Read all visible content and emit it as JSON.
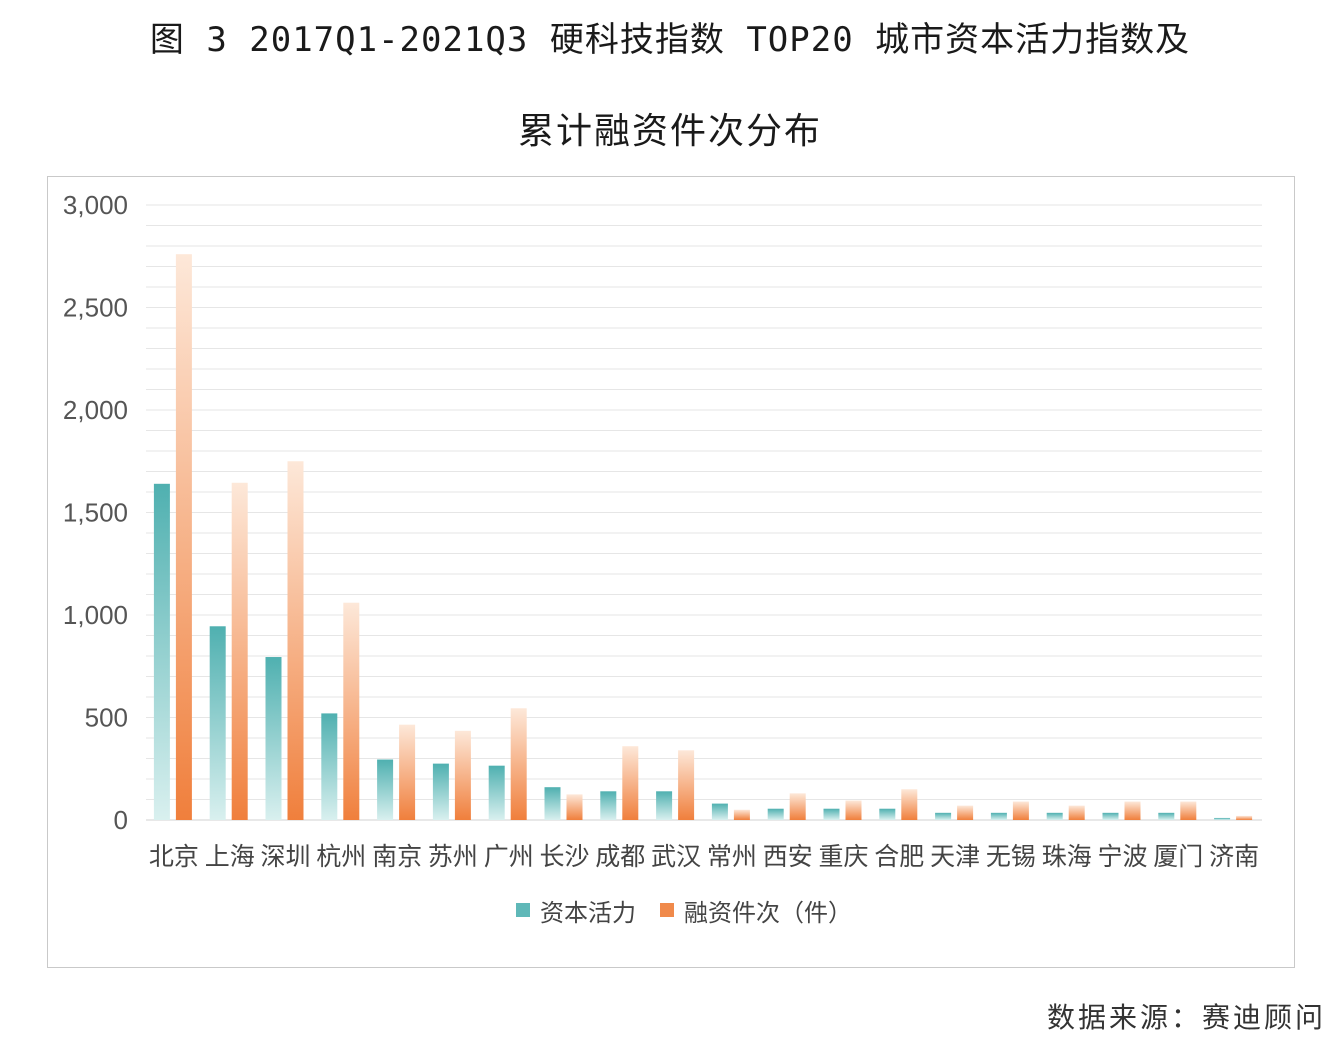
{
  "title_line1": "图 3 2017Q1-2021Q3 硬科技指数 TOP20 城市资本活力指数及",
  "title_line2": "累计融资件次分布",
  "source": "数据来源：赛迪顾问",
  "colors": {
    "capital": "#5fb8b8",
    "capital_light": "#d9f0ef",
    "financing": "#f08a4b",
    "financing_light": "#fde8d9",
    "grid": "#e6e6e6",
    "axis_text": "#555555"
  },
  "chart_data": {
    "type": "bar",
    "categories": [
      "北京",
      "上海",
      "深圳",
      "杭州",
      "南京",
      "苏州",
      "广州",
      "长沙",
      "成都",
      "武汉",
      "常州",
      "西安",
      "重庆",
      "合肥",
      "天津",
      "无锡",
      "珠海",
      "宁波",
      "厦门",
      "济南"
    ],
    "series": [
      {
        "name": "资本活力",
        "values": [
          1640,
          945,
          795,
          520,
          295,
          275,
          265,
          160,
          140,
          140,
          80,
          55,
          55,
          55,
          35,
          35,
          35,
          35,
          35,
          10
        ]
      },
      {
        "name": "融资件次（件）",
        "values": [
          2760,
          1645,
          1750,
          1060,
          465,
          435,
          545,
          125,
          360,
          340,
          50,
          130,
          95,
          150,
          70,
          90,
          70,
          90,
          90,
          20
        ]
      }
    ],
    "yticks": [
      "3,000",
      "2,500",
      "2,000",
      "1,500",
      "1,000",
      "500",
      "0"
    ],
    "ylim": [
      0,
      3000
    ],
    "grid": true,
    "legend": "bottom-center"
  }
}
